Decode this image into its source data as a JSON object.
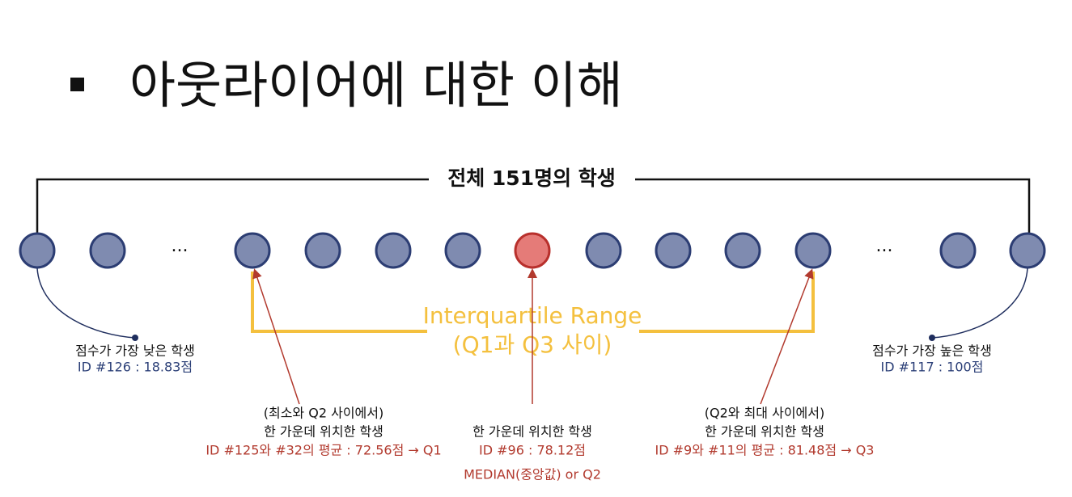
{
  "header": {
    "title": "아웃라이어에 대한 이해"
  },
  "bracket_label": "전체 151명의 학생",
  "ellipses": [
    "...",
    "..."
  ],
  "iqr": {
    "line1": "Interquartile Range",
    "line2": "(Q1과 Q3 사이)"
  },
  "annotations": {
    "min": {
      "line1": "점수가 가장 낮은 학생",
      "line2": "ID #126 : 18.83점"
    },
    "max": {
      "line1": "점수가 가장 높은 학생",
      "line2": "ID #117 : 100점"
    },
    "q1": {
      "line1": "(최소와 Q2 사이에서)",
      "line2": "한 가운데 위치한 학생",
      "line3": "ID #125와 #32의 평균 : 72.56점 → Q1"
    },
    "median": {
      "line1": "한 가운데 위치한 학생",
      "line2": "ID #96 : 78.12점",
      "line3": "MEDIAN(중앙값) or Q2"
    },
    "q3": {
      "line1": "(Q2와 최대 사이에서)",
      "line2": "한 가운데 위치한 학생",
      "line3": "ID #9와 #11의 평균 : 81.48점 → Q3"
    }
  }
}
